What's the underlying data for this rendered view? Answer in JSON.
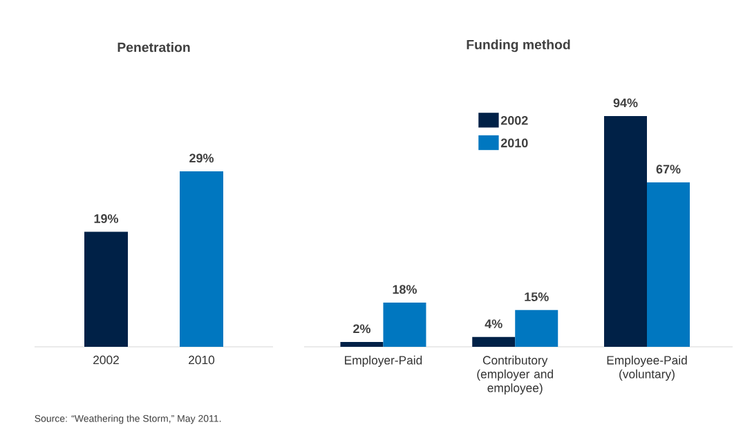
{
  "chart_data": [
    {
      "type": "bar",
      "title": "Penetration",
      "categories": [
        "2002",
        "2010"
      ],
      "values": [
        19,
        29
      ],
      "colors": [
        "#002147",
        "#0077c0"
      ],
      "value_labels": [
        "19%",
        "29%"
      ],
      "annotations": [
        "Source: “Weathering the Storm,” May 2011."
      ]
    },
    {
      "type": "bar",
      "title": "Funding method",
      "categories": [
        "Employer-Paid",
        "Contributory (employer and employee)",
        "Employee-Paid (voluntary)"
      ],
      "legend": "top",
      "series": [
        {
          "name": "2002",
          "color": "#002147",
          "values": [
            2,
            4,
            94
          ],
          "value_labels": [
            "2%",
            "4%",
            "94%"
          ]
        },
        {
          "name": "2010",
          "color": "#0077c0",
          "values": [
            18,
            15,
            67
          ],
          "value_labels": [
            "18%",
            "15%",
            "67%"
          ]
        }
      ]
    }
  ]
}
